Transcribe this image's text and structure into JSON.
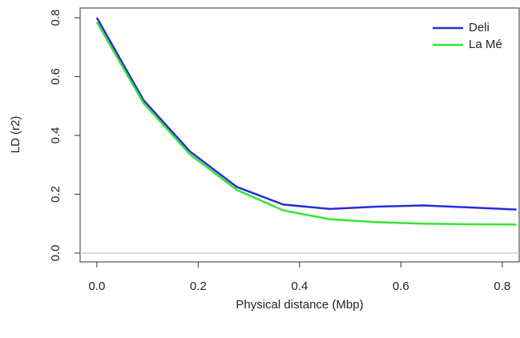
{
  "chart_data": {
    "type": "line",
    "xlabel": "Physical distance (Mbp)",
    "ylabel": "LD (r2)",
    "x": [
      0,
      0.092,
      0.184,
      0.276,
      0.368,
      0.46,
      0.552,
      0.644,
      0.736,
      0.828
    ],
    "series": [
      {
        "name": "Deli",
        "color": "#2b2bd9",
        "values": [
          0.8,
          0.52,
          0.345,
          0.225,
          0.165,
          0.15,
          0.158,
          0.162,
          0.155,
          0.148
        ]
      },
      {
        "name": "La Mé",
        "color": "#33e633",
        "values": [
          0.785,
          0.51,
          0.335,
          0.215,
          0.145,
          0.115,
          0.105,
          0.1,
          0.098,
          0.097
        ]
      }
    ],
    "xlim": [
      -0.033,
      0.835
    ],
    "ylim": [
      -0.03,
      0.833
    ],
    "xticks": [
      {
        "value": 0,
        "label": "0.0"
      },
      0.2,
      0.4,
      0.6,
      0.8
    ],
    "yticks": [
      {
        "value": 0,
        "label": "0.0"
      },
      0.2,
      0.4,
      0.6,
      0.8
    ],
    "hline": 0,
    "hline_color": "#bbbbbb",
    "legend": "top-right"
  }
}
